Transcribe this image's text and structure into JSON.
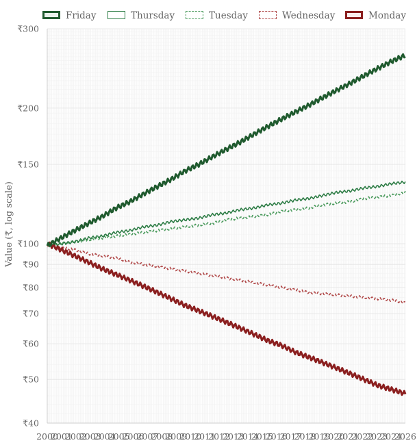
{
  "chart_data": {
    "type": "line",
    "ylabel": "Value (₹, log scale)",
    "y_scale": "log",
    "ylim": [
      40,
      300
    ],
    "y_ticks": [
      {
        "value": 40,
        "label": "₹40"
      },
      {
        "value": 50,
        "label": "₹50"
      },
      {
        "value": 60,
        "label": "₹60"
      },
      {
        "value": 70,
        "label": "₹70"
      },
      {
        "value": 80,
        "label": "₹80"
      },
      {
        "value": 90,
        "label": "₹90"
      },
      {
        "value": 100,
        "label": "₹100"
      },
      {
        "value": 150,
        "label": "₹150"
      },
      {
        "value": 200,
        "label": "₹200"
      },
      {
        "value": 300,
        "label": "₹300"
      }
    ],
    "x_ticks": [
      "2000",
      "2001",
      "2002",
      "2003",
      "2004",
      "2005",
      "2006",
      "2007",
      "2008",
      "2009",
      "2010",
      "2011",
      "2012",
      "2013",
      "2014",
      "2015",
      "2016",
      "2017",
      "2018",
      "2019",
      "2020",
      "2021",
      "2022",
      "2023",
      "2024",
      "2026"
    ],
    "legend_position": "top",
    "grid": true,
    "series": [
      {
        "name": "Friday",
        "color": "#1f5a2e",
        "style": "solid",
        "weight": "bold",
        "x": [
          2000,
          2001,
          2002,
          2003,
          2004,
          2005,
          2006,
          2007,
          2008,
          2009,
          2010,
          2011,
          2012,
          2013,
          2014,
          2015,
          2016,
          2017,
          2018,
          2019,
          2020,
          2021,
          2022,
          2023,
          2024,
          2025,
          2026
        ],
        "values": [
          99,
          103,
          107,
          111,
          115,
          120,
          124,
          129,
          134,
          139,
          145,
          150,
          156,
          162,
          168,
          175,
          182,
          189,
          196,
          203,
          211,
          219,
          227,
          236,
          245,
          254,
          262
        ]
      },
      {
        "name": "Thursday",
        "color": "#2e7d46",
        "style": "solid",
        "weight": "normal",
        "x": [
          2000,
          2001,
          2002,
          2003,
          2004,
          2005,
          2006,
          2007,
          2008,
          2009,
          2010,
          2011,
          2012,
          2013,
          2014,
          2015,
          2016,
          2017,
          2018,
          2019,
          2020,
          2021,
          2022,
          2023,
          2024,
          2025,
          2026
        ],
        "values": [
          99,
          100,
          101,
          103,
          104,
          106,
          107,
          109,
          110,
          112,
          113,
          114,
          116,
          117,
          119,
          120,
          122,
          123,
          125,
          126,
          128,
          130,
          131,
          133,
          134,
          136,
          137
        ]
      },
      {
        "name": "Tuesday",
        "color": "#4a9a5c",
        "style": "dashed",
        "weight": "normal",
        "x": [
          2000,
          2001,
          2002,
          2003,
          2004,
          2005,
          2006,
          2007,
          2008,
          2009,
          2010,
          2011,
          2012,
          2013,
          2014,
          2015,
          2016,
          2017,
          2018,
          2019,
          2020,
          2021,
          2022,
          2023,
          2024,
          2025,
          2026
        ],
        "values": [
          99,
          100,
          101,
          102,
          103,
          104,
          105,
          106,
          107,
          108,
          109,
          110,
          111,
          113,
          114,
          115,
          116,
          118,
          119,
          120,
          122,
          123,
          124,
          126,
          127,
          128,
          130
        ]
      },
      {
        "name": "Wednesday",
        "color": "#b04848",
        "style": "dashed",
        "weight": "normal",
        "x": [
          2000,
          2001,
          2002,
          2003,
          2004,
          2005,
          2006,
          2007,
          2008,
          2009,
          2010,
          2011,
          2012,
          2013,
          2014,
          2015,
          2016,
          2017,
          2018,
          2019,
          2020,
          2021,
          2022,
          2023,
          2024,
          2025,
          2026
        ],
        "values": [
          100,
          98,
          97,
          95,
          94,
          93,
          91,
          90,
          89,
          88,
          87,
          86,
          85,
          84,
          83,
          82,
          81,
          80,
          79,
          78,
          77.5,
          77,
          76.5,
          76,
          75.5,
          75,
          74
        ]
      },
      {
        "name": "Monday",
        "color": "#8b1f1f",
        "style": "solid",
        "weight": "bold",
        "x": [
          2000,
          2001,
          2002,
          2003,
          2004,
          2005,
          2006,
          2007,
          2008,
          2009,
          2010,
          2011,
          2012,
          2013,
          2014,
          2015,
          2016,
          2017,
          2018,
          2019,
          2020,
          2021,
          2022,
          2023,
          2024,
          2025,
          2026
        ],
        "values": [
          100,
          97,
          94,
          91,
          88,
          85.5,
          83,
          80.5,
          78,
          75.5,
          73,
          71,
          69,
          67,
          65,
          63,
          61,
          59.5,
          57.5,
          56,
          54.5,
          53,
          51.5,
          50,
          48.5,
          47.5,
          46.5
        ]
      }
    ]
  }
}
